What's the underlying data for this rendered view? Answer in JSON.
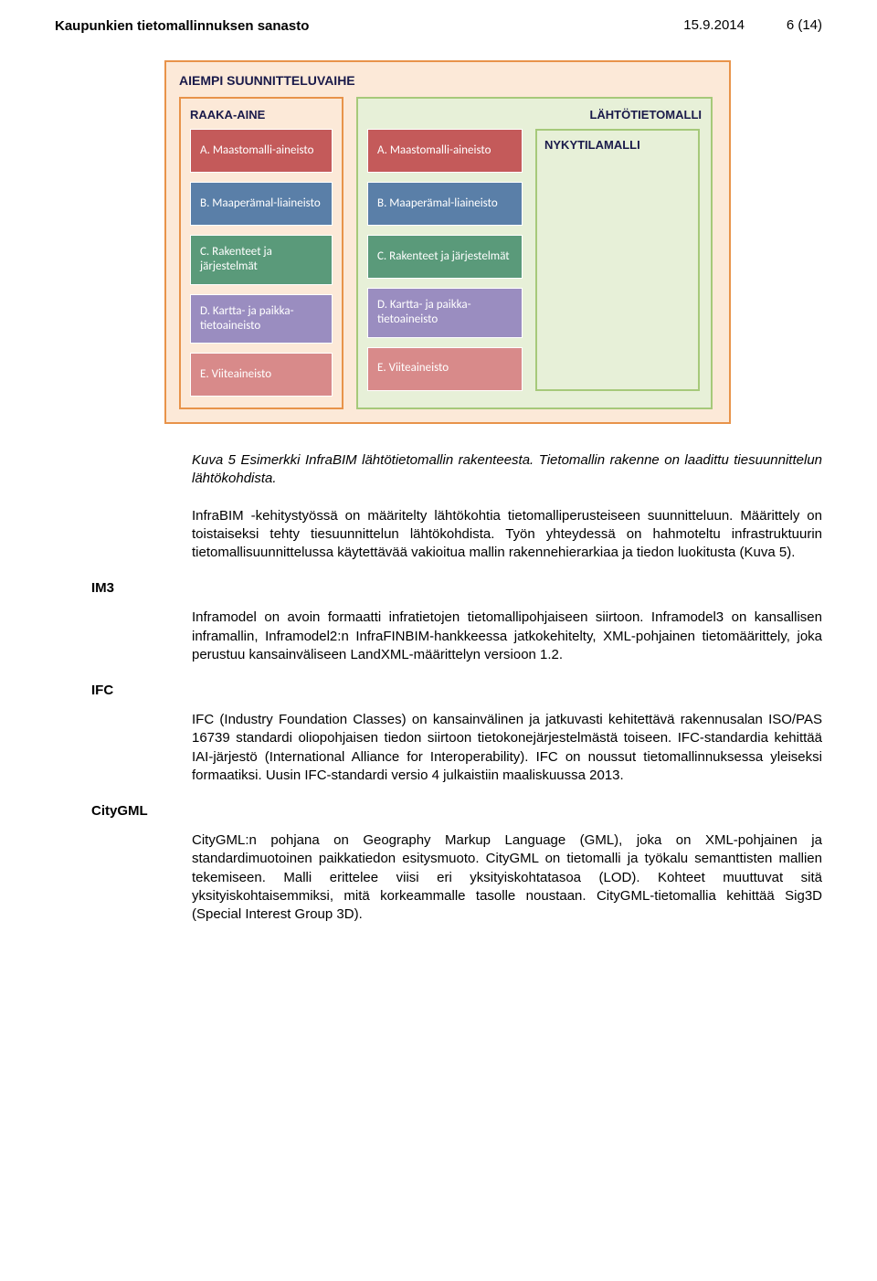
{
  "header": {
    "title": "Kaupunkien tietomallinnuksen sanasto",
    "date": "15.9.2014",
    "page": "6 (14)"
  },
  "diagram": {
    "outer_label": "AIEMPI SUUNNITTELUVAIHE",
    "left_label": "RAAKA-AINE",
    "right_label": "LÄHTÖTIETOMALLI",
    "nyky_label": "NYKYTILAMALLI",
    "colors": {
      "a": "#c45a5a",
      "b": "#5a7fa8",
      "c": "#5a9a7a",
      "d": "#9a8dc0",
      "e": "#d88a8a"
    },
    "left_items": [
      {
        "text": "A. Maastomalli-aineisto",
        "color_key": "a"
      },
      {
        "text": "B. Maaperämal-liaineisto",
        "color_key": "b"
      },
      {
        "text": "C. Rakenteet ja järjestelmät",
        "color_key": "c"
      },
      {
        "text": "D. Kartta- ja paikka-tietoaineisto",
        "color_key": "d"
      },
      {
        "text": "E. Viiteaineisto",
        "color_key": "e"
      }
    ],
    "mid_items": [
      {
        "text": "A. Maastomalli-aineisto",
        "color_key": "a"
      },
      {
        "text": "B. Maaperämal-liaineisto",
        "color_key": "b"
      },
      {
        "text": "C. Rakenteet ja järjestelmät",
        "color_key": "c"
      },
      {
        "text": "D. Kartta- ja paikka-tietoaineisto",
        "color_key": "d"
      },
      {
        "text": "E. Viiteaineisto",
        "color_key": "e"
      }
    ]
  },
  "body": {
    "caption": "Kuva 5 Esimerkki InfraBIM lähtötietomallin rakenteesta. Tietomallin rakenne on laadittu tiesuunnittelun lähtökohdista.",
    "p1": "InfraBIM -kehitystyössä on määritelty lähtökohtia tietomalliperusteiseen suunnitteluun. Määrittely on toistaiseksi tehty tiesuunnittelun lähtökohdista. Työn yhteydessä on hahmoteltu infrastruktuurin tietomallisuunnittelussa käytettävää vakioitua mallin rakennehierarkiaa ja tiedon luokitusta (Kuva 5).",
    "h_im3": "IM3",
    "p_im3": "Inframodel on avoin formaatti infratietojen tietomallipohjaiseen siirtoon. Inframodel3 on kansallisen inframallin, Inframodel2:n InfraFINBIM-hankkeessa jatkokehitelty, XML-pohjainen tietomäärittely, joka perustuu kansainväliseen LandXML-määrittelyn versioon 1.2.",
    "h_ifc": "IFC",
    "p_ifc": "IFC (Industry Foundation Classes) on kansainvälinen ja jatkuvasti kehitettävä rakennusalan ISO/PAS 16739 standardi oliopohjaisen tiedon siirtoon tietokonejärjestelmästä toiseen. IFC-standardia kehittää IAI-järjestö (International Alliance for Interoperability). IFC on noussut tietomallinnuksessa yleiseksi formaatiksi. Uusin IFC-standardi versio 4 julkaistiin maaliskuussa 2013.",
    "h_citygml": "CityGML",
    "p_citygml": "CityGML:n pohjana on Geography Markup Language (GML), joka on XML-pohjainen ja standardimuotoinen paikkatiedon esitysmuoto. CityGML on tietomalli ja työkalu semanttisten mallien tekemiseen. Malli erittelee viisi eri yksityiskohtatasoa (LOD). Kohteet muuttuvat sitä yksityiskohtaisemmiksi, mitä korkeammalle tasolle noustaan. CityGML-tietomallia kehittää Sig3D (Special Interest Group 3D)."
  }
}
